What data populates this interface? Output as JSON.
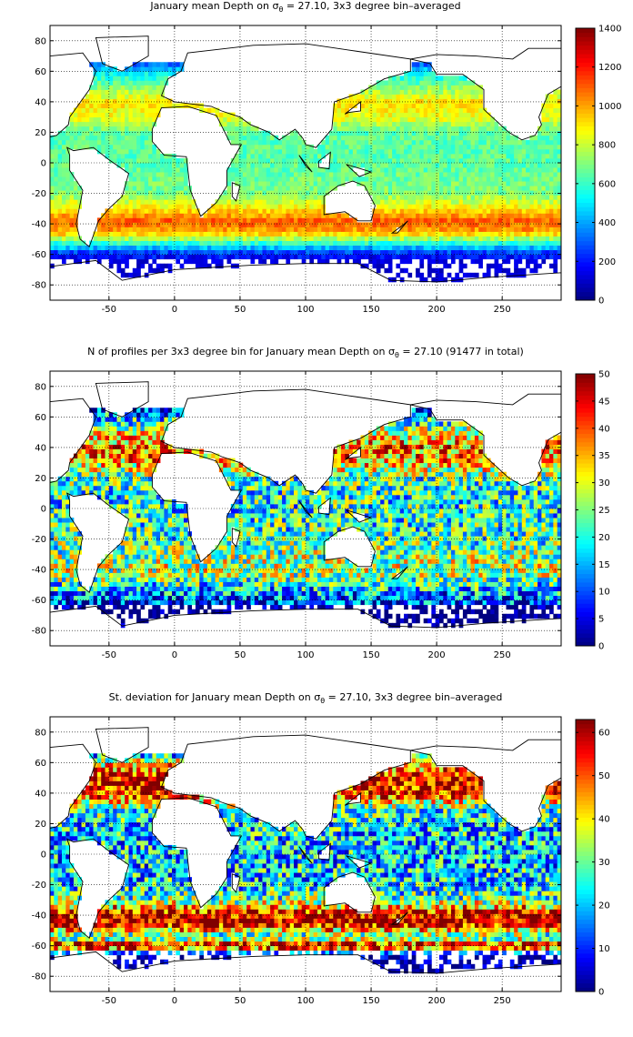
{
  "panels": [
    {
      "title_pre": "January mean Depth on σ",
      "title_sub": "θ",
      "title_post": " = 27.10, 3x3 degree bin–averaged",
      "colorbar": {
        "min": 0,
        "max": 1400,
        "ticks": [
          0,
          200,
          400,
          600,
          800,
          1000,
          1200,
          1400
        ]
      }
    },
    {
      "title_pre": "N of profiles per 3x3 degree bin for January mean Depth on σ",
      "title_sub": "θ",
      "title_post": " = 27.10 (91477 in total)",
      "colorbar": {
        "min": 0,
        "max": 50,
        "ticks": [
          0,
          5,
          10,
          15,
          20,
          25,
          30,
          35,
          40,
          45,
          50
        ]
      }
    },
    {
      "title_pre": "St. deviation for January mean Depth on σ",
      "title_sub": "θ",
      "title_post": " = 27.10, 3x3 degree bin–averaged",
      "colorbar": {
        "min": 0,
        "max": 63,
        "ticks": [
          0,
          10,
          20,
          30,
          40,
          50,
          60
        ]
      }
    }
  ],
  "chart_data": [
    {
      "type": "heatmap",
      "title": "January mean Depth on σθ = 27.10, 3x3 degree bin–averaged",
      "xlim": [
        -95,
        295
      ],
      "ylim": [
        -90,
        90
      ],
      "xticks": [
        -50,
        0,
        50,
        100,
        150,
        200,
        250
      ],
      "yticks": [
        -80,
        -60,
        -40,
        -20,
        0,
        20,
        40,
        60,
        80
      ],
      "grid": true,
      "colormap": "jet",
      "clim": [
        0,
        1400
      ],
      "zonal_profile": {
        "lat": [
          -75,
          -66,
          -60,
          -54,
          -45,
          -38,
          -30,
          -20,
          0,
          20,
          30,
          40,
          50,
          60,
          65
        ],
        "value": [
          150,
          150,
          200,
          500,
          1000,
          1100,
          900,
          700,
          650,
          650,
          850,
          900,
          700,
          500,
          300
        ]
      }
    },
    {
      "type": "heatmap",
      "title": "N of profiles per 3x3 degree bin for January mean Depth on σθ = 27.10 (91477 in total)",
      "xlim": [
        -95,
        295
      ],
      "ylim": [
        -90,
        90
      ],
      "xticks": [
        -50,
        0,
        50,
        100,
        150,
        200,
        250
      ],
      "yticks": [
        -80,
        -60,
        -40,
        -20,
        0,
        20,
        40,
        60,
        80
      ],
      "grid": true,
      "colormap": "jet",
      "clim": [
        0,
        50
      ],
      "zonal_profile": {
        "lat": [
          -75,
          -66,
          -60,
          -54,
          -45,
          -38,
          -30,
          -20,
          0,
          20,
          30,
          40,
          50,
          60,
          65
        ],
        "value": [
          5,
          5,
          10,
          15,
          25,
          28,
          25,
          22,
          20,
          22,
          35,
          38,
          30,
          15,
          8
        ]
      }
    },
    {
      "type": "heatmap",
      "title": "St. deviation for January mean Depth on σθ = 27.10, 3x3 degree bin–averaged",
      "xlim": [
        -95,
        295
      ],
      "ylim": [
        -90,
        90
      ],
      "xticks": [
        -50,
        0,
        50,
        100,
        150,
        200,
        250
      ],
      "yticks": [
        -80,
        -60,
        -40,
        -20,
        0,
        20,
        40,
        60,
        80
      ],
      "grid": true,
      "colormap": "jet",
      "clim": [
        0,
        63
      ],
      "zonal_profile": {
        "lat": [
          -75,
          -66,
          -60,
          -54,
          -45,
          -38,
          -30,
          -20,
          0,
          20,
          30,
          40,
          50,
          60,
          65
        ],
        "value": [
          8,
          12,
          60,
          25,
          62,
          55,
          30,
          22,
          20,
          22,
          28,
          55,
          58,
          40,
          20
        ]
      }
    }
  ]
}
